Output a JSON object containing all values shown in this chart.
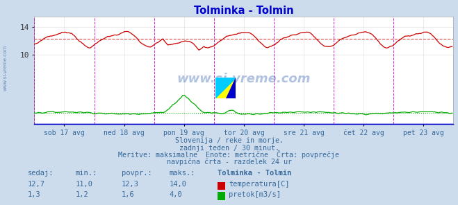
{
  "title": "Tolminka - Tolmin",
  "title_color": "#0000cc",
  "bg_color": "#ccdcec",
  "plot_bg_color": "#ffffff",
  "grid_color": "#cccccc",
  "xlabel_color": "#336699",
  "text_color": "#336699",
  "x_labels": [
    "sob 17 avg",
    "ned 18 avg",
    "pon 19 avg",
    "tor 20 avg",
    "sre 21 avg",
    "čet 22 avg",
    "pet 23 avg"
  ],
  "y_ticks": [
    10,
    14
  ],
  "y_min": 0,
  "y_max": 15.5,
  "avg_temp": 12.3,
  "avg_flow": 1.6,
  "temp_color": "#cc0000",
  "flow_color": "#00aa00",
  "vline_color": "#cc00cc",
  "bottom_text1": "Slovenija / reke in morje.",
  "bottom_text2": "zadnji teden / 30 minut.",
  "bottom_text3": "Meritve: maksimalne  Enote: metrične  Črta: povprečje",
  "bottom_text4": "navpična črta - razdelek 24 ur",
  "table_header": [
    "sedaj:",
    "min.:",
    "povpr.:",
    "maks.:",
    "Tolminka - Tolmin"
  ],
  "table_row1": [
    "12,7",
    "11,0",
    "12,3",
    "14,0",
    "temperatura[C]"
  ],
  "table_row2": [
    "1,3",
    "1,2",
    "1,6",
    "4,0",
    "pretok[m3/s]"
  ],
  "n_points": 336
}
